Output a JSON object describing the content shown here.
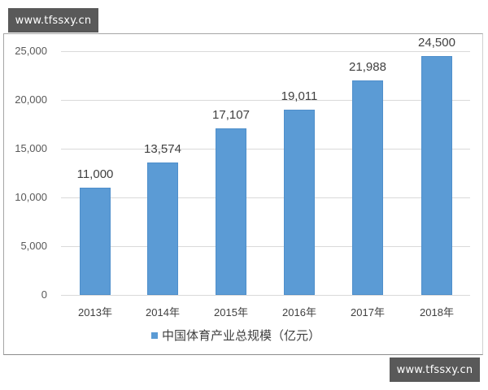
{
  "watermarks": {
    "top": "www.tfssxy.cn",
    "bottom": "www.tfssxy.cn"
  },
  "chart_data": {
    "type": "bar",
    "title": "",
    "xlabel": "",
    "ylabel": "",
    "categories": [
      "2013年",
      "2014年",
      "2015年",
      "2016年",
      "2017年",
      "2018年"
    ],
    "series": [
      {
        "name": "中国体育产业总规模（亿元）",
        "values": [
          11000,
          13574,
          17107,
          19011,
          21988,
          24500
        ],
        "color": "#5b9bd5"
      }
    ],
    "data_labels": [
      "11,000",
      "13,574",
      "17,107",
      "19,011",
      "21,988",
      "24,500"
    ],
    "ylim": [
      0,
      25000
    ],
    "yticks": [
      0,
      5000,
      10000,
      15000,
      20000,
      25000
    ],
    "ytick_labels": [
      "0",
      "5,000",
      "10,000",
      "15,000",
      "20,000",
      "25,000"
    ],
    "grid": true,
    "legend_position": "bottom"
  },
  "legend": {
    "label": "中国体育产业总规模（亿元）"
  }
}
